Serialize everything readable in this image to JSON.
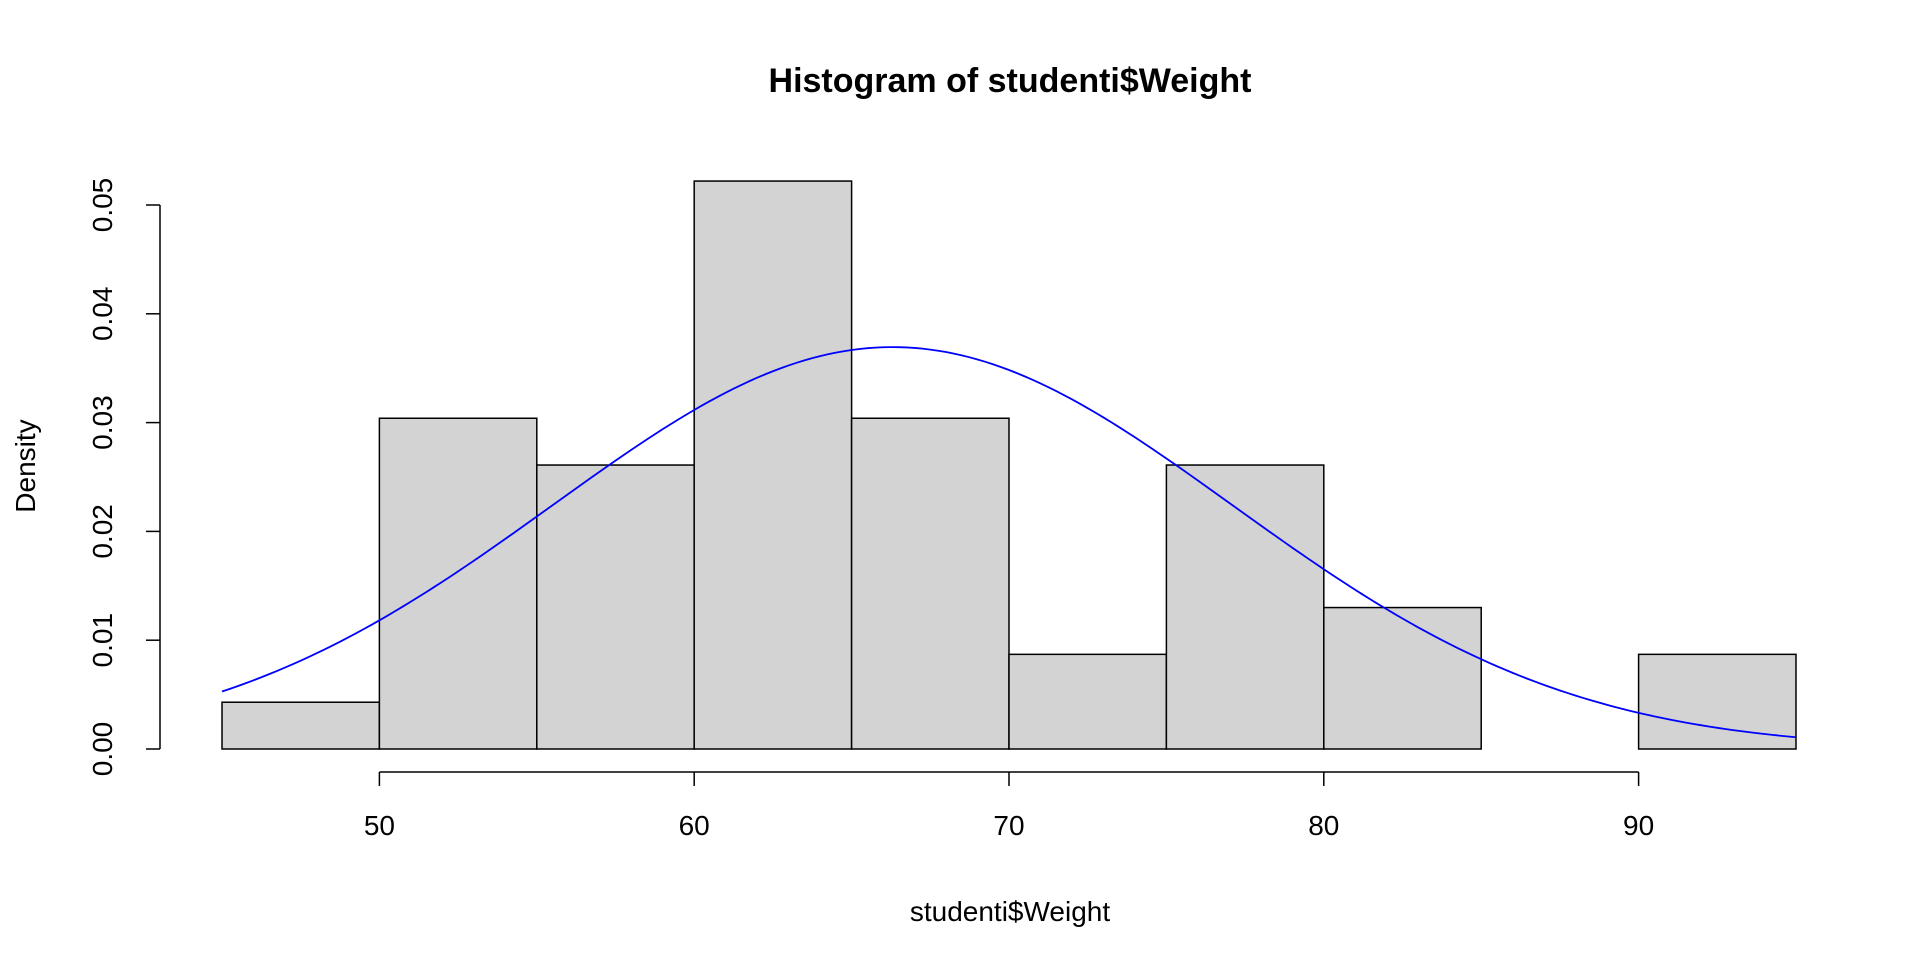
{
  "chart_data": {
    "type": "bar",
    "title": "Histogram of studenti$Weight",
    "xlabel": "studenti$Weight",
    "ylabel": "Density",
    "xlim": [
      45,
      95
    ],
    "ylim": [
      0,
      0.05
    ],
    "bins": [
      {
        "x0": 45,
        "x1": 50,
        "density": 0.0043
      },
      {
        "x0": 50,
        "x1": 55,
        "density": 0.0304
      },
      {
        "x0": 55,
        "x1": 60,
        "density": 0.0261
      },
      {
        "x0": 60,
        "x1": 65,
        "density": 0.0522
      },
      {
        "x0": 65,
        "x1": 70,
        "density": 0.0304
      },
      {
        "x0": 70,
        "x1": 75,
        "density": 0.0087
      },
      {
        "x0": 75,
        "x1": 80,
        "density": 0.0261
      },
      {
        "x0": 80,
        "x1": 85,
        "density": 0.013
      },
      {
        "x0": 85,
        "x1": 90,
        "density": 0.0
      },
      {
        "x0": 90,
        "x1": 95,
        "density": 0.0087
      }
    ],
    "x_ticks": [
      50,
      60,
      70,
      80,
      90
    ],
    "x_tick_labels": [
      "50",
      "60",
      "70",
      "80",
      "90"
    ],
    "y_ticks": [
      0,
      0.01,
      0.02,
      0.03,
      0.04,
      0.05
    ],
    "y_tick_labels": [
      "0.00",
      "0.01",
      "0.02",
      "0.03",
      "0.04",
      "0.05"
    ],
    "density_curve": {
      "type": "line",
      "mean": 66.3,
      "sd": 10.8,
      "x_range": [
        45,
        95
      ]
    },
    "grid": false,
    "colors": {
      "bar_fill": "#d3d3d3",
      "bar_stroke": "#000000",
      "curve": "#0000ff"
    }
  }
}
